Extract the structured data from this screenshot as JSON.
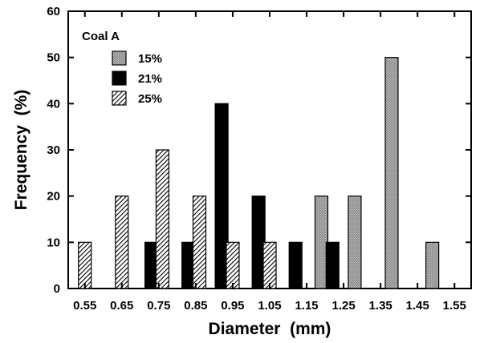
{
  "chart_data": {
    "type": "bar",
    "xlabel": "Diameter  (mm)",
    "ylabel": "Frequency  (%)",
    "ylim": [
      0,
      60
    ],
    "yticks": [
      0,
      10,
      20,
      30,
      40,
      50,
      60
    ],
    "categories": [
      "0.55",
      "0.65",
      "0.75",
      "0.85",
      "0.95",
      "1.05",
      "1.15",
      "1.25",
      "1.35",
      "1.45",
      "1.55"
    ],
    "legend_title": "Coal A",
    "legend_position": "top-left",
    "series": [
      {
        "name": "15%",
        "pattern": "stipple",
        "points": [
          {
            "x": 1.19,
            "y": 20
          },
          {
            "x": 1.28,
            "y": 20
          },
          {
            "x": 1.38,
            "y": 50
          },
          {
            "x": 1.49,
            "y": 10
          }
        ]
      },
      {
        "name": "21%",
        "pattern": "solid",
        "points": [
          {
            "x": 0.73,
            "y": 10
          },
          {
            "x": 0.83,
            "y": 10
          },
          {
            "x": 0.92,
            "y": 40
          },
          {
            "x": 1.02,
            "y": 20
          },
          {
            "x": 1.12,
            "y": 10
          },
          {
            "x": 1.22,
            "y": 10
          }
        ]
      },
      {
        "name": "25%",
        "pattern": "hatch",
        "points": [
          {
            "x": 0.55,
            "y": 10
          },
          {
            "x": 0.65,
            "y": 20
          },
          {
            "x": 0.76,
            "y": 30
          },
          {
            "x": 0.86,
            "y": 20
          },
          {
            "x": 0.95,
            "y": 10
          },
          {
            "x": 1.05,
            "y": 10
          }
        ]
      }
    ],
    "colors": {
      "solid": "#000000",
      "stipple": "#9a9a9a",
      "hatch": "#888888"
    }
  }
}
